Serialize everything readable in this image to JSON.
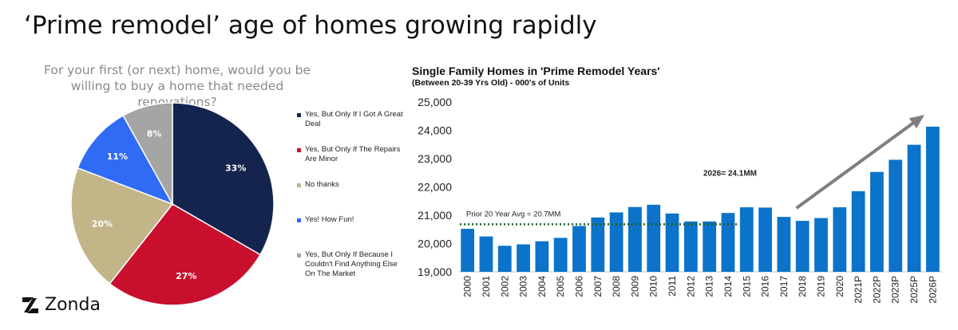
{
  "slide": {
    "title": "‘Prime remodel’ age of homes growing rapidly",
    "logo_text": "Zonda",
    "logo_mark": "zonda-logo-mark"
  },
  "chart_data": [
    {
      "type": "pie",
      "title": "For your first (or next) home, would you be willing to buy a home that needed renovations?",
      "slices": [
        {
          "label": "Yes, But Only If I Got A Great Deal",
          "value": 33,
          "display": "33%",
          "color": "#14244f"
        },
        {
          "label": "Yes, But Only If The Repairs Are Minor",
          "value": 27,
          "display": "27%",
          "color": "#c8102e"
        },
        {
          "label": "No thanks",
          "value": 20,
          "display": "20%",
          "color": "#c2b587"
        },
        {
          "label": "Yes! How Fun!",
          "value": 11,
          "display": "11%",
          "color": "#2f6bf5"
        },
        {
          "label": "Yes, But Only If Because I Couldn't Find Anything Else On The Market",
          "value": 8,
          "display": "8%",
          "color": "#a5a5a5"
        }
      ],
      "legend_position": "right"
    },
    {
      "type": "bar",
      "title": "Single Family Homes in 'Prime Remodel Years'",
      "subtitle": "(Between 20-39 Yrs Old) - 000's of Units",
      "categories": [
        "2000",
        "2001",
        "2002",
        "2003",
        "2004",
        "2005",
        "2006",
        "2007",
        "2008",
        "2009",
        "2010",
        "2011",
        "2012",
        "2013",
        "2014",
        "2015",
        "2016",
        "2017",
        "2018",
        "2019",
        "2020",
        "2021P",
        "2022P",
        "2023P",
        "2025P",
        "2026P"
      ],
      "values": [
        20520,
        20250,
        19920,
        19970,
        20080,
        20200,
        20620,
        20920,
        21100,
        21290,
        21370,
        21060,
        20780,
        20780,
        21080,
        21280,
        21270,
        20940,
        20800,
        20900,
        21280,
        21850,
        22530,
        22960,
        23490,
        24130
      ],
      "ylim": [
        19000,
        25000
      ],
      "yticks": [
        "19,000",
        "20,000",
        "21,000",
        "22,000",
        "23,000",
        "24,000",
        "25,000"
      ],
      "bar_color": "#0b73c9",
      "grid": false,
      "annotations": {
        "avg_label": "Prior 20 Year Avg = 20.7MM",
        "avg_value": 20680,
        "avg_line_color": "#1e5e2a",
        "total_label": "2026= 24.1MM",
        "trend_arrow_color": "#7f7f7f"
      }
    }
  ]
}
